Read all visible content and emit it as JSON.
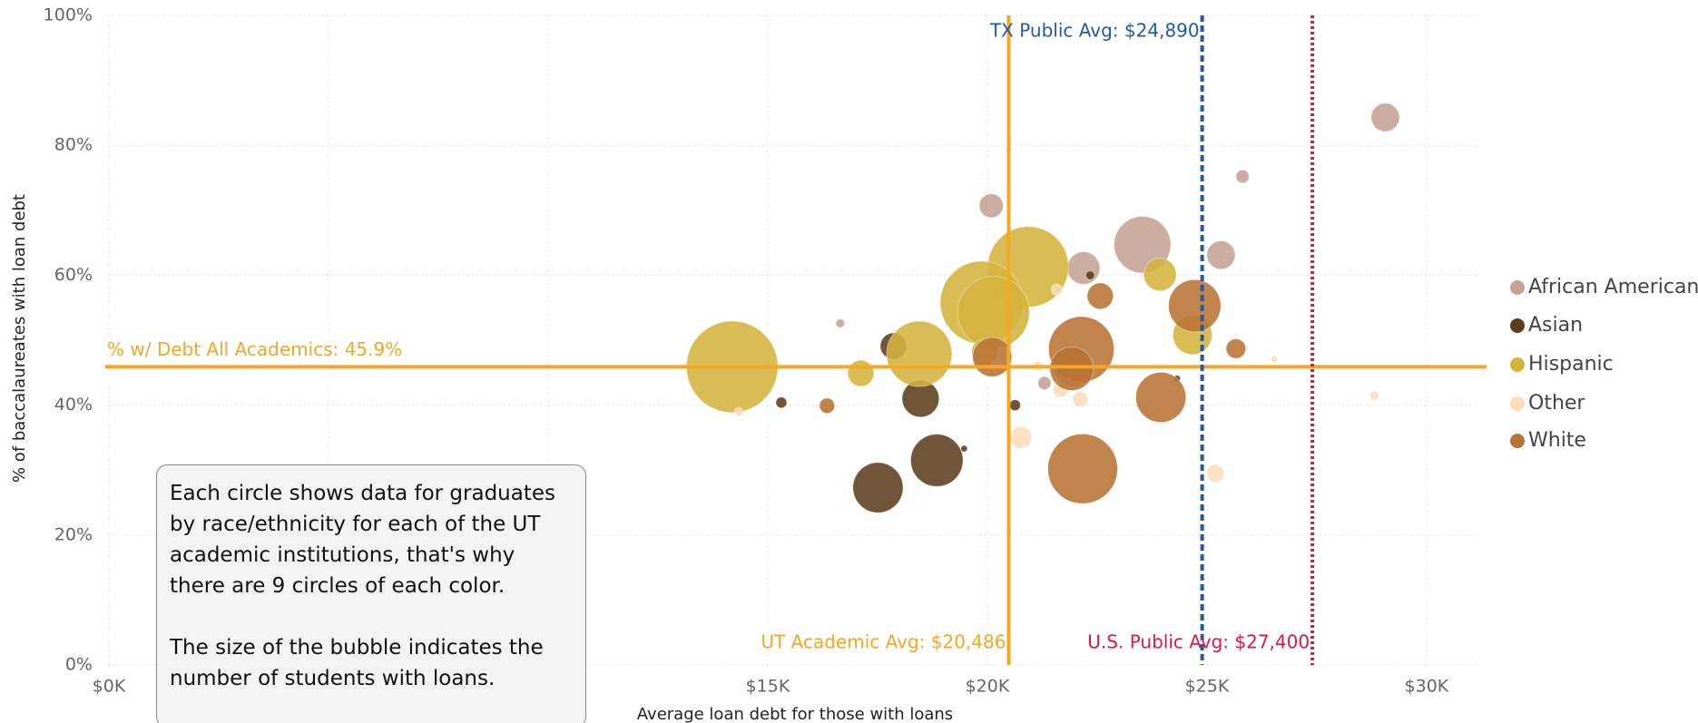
{
  "chart_data": {
    "type": "scatter",
    "x_label": "Average loan debt for those with loans",
    "y_label": "% of baccalaureates with loan debt",
    "xlim": [
      0,
      31200
    ],
    "ylim": [
      0,
      100
    ],
    "xticks": [
      {
        "value": 0,
        "label": "$0K"
      },
      {
        "value": 5000
      },
      {
        "value": 10000
      },
      {
        "value": 15000,
        "label": "$15K"
      },
      {
        "value": 20000,
        "label": "$20K"
      },
      {
        "value": 25000,
        "label": "$25K"
      },
      {
        "value": 30000,
        "label": "$30K"
      }
    ],
    "yticks": [
      {
        "value": 0,
        "label": "0%"
      },
      {
        "value": 20,
        "label": "20%"
      },
      {
        "value": 40,
        "label": "40%"
      },
      {
        "value": 60,
        "label": "60%"
      },
      {
        "value": 80,
        "label": "80%"
      },
      {
        "value": 100,
        "label": "100%"
      }
    ],
    "grid": true,
    "legend": "right",
    "series": [
      {
        "name": "African American",
        "color": "#c4a294",
        "x": [
          29060,
          25810,
          20090,
          23530,
          25320,
          22190,
          21300,
          16650,
          21950
        ],
        "values": [
          84.3,
          75.2,
          70.7,
          64.7,
          63.1,
          61.1,
          43.4,
          52.6,
          45.9
        ],
        "sizes": [
          169,
          36,
          121,
          676,
          169,
          225,
          36,
          16,
          324
        ]
      },
      {
        "name": "Asian",
        "color": "#5c3d1e",
        "x": [
          17510,
          18850,
          18480,
          17860,
          15310,
          20630,
          19470,
          22340,
          24320
        ],
        "values": [
          27.3,
          31.5,
          41.0,
          49.1,
          40.4,
          40.0,
          33.3,
          60.0,
          44.1
        ],
        "sizes": [
          529,
          576,
          289,
          144,
          25,
          25,
          9,
          16,
          9
        ]
      },
      {
        "name": "Hispanic",
        "color": "#d4b43c",
        "x": [
          14190,
          20930,
          19870,
          20140,
          18450,
          24670,
          23930,
          17120,
          19940
        ],
        "values": [
          45.9,
          61.3,
          55.8,
          54.3,
          47.9,
          50.8,
          60.1,
          44.9,
          48.2
        ],
        "sizes": [
          1764,
          1369,
          1444,
          1089,
          900,
          324,
          225,
          144,
          144
        ]
      },
      {
        "name": "Other",
        "color": "#fbdcb8",
        "x": [
          20760,
          25190,
          22120,
          21670,
          21580,
          28810,
          26530,
          14340,
          21150
        ],
        "values": [
          35.0,
          29.5,
          40.9,
          42.4,
          57.8,
          41.5,
          47.1,
          39.0,
          46.1
        ],
        "sizes": [
          100,
          64,
          49,
          49,
          25,
          16,
          9,
          16,
          16
        ]
      },
      {
        "name": "White",
        "color": "#b87333",
        "x": [
          22170,
          22140,
          23950,
          24720,
          21920,
          20110,
          22570,
          25660,
          16350
        ],
        "values": [
          30.2,
          48.6,
          41.2,
          55.3,
          45.6,
          47.4,
          56.8,
          48.7,
          39.9
        ],
        "sizes": [
          1024,
          900,
          529,
          576,
          400,
          324,
          144,
          81,
          49
        ]
      }
    ],
    "reference_lines": [
      {
        "label": "% w/ Debt All Academics: 45.9%",
        "axis": "y",
        "value": 45.9,
        "color": "#f5a623",
        "style": "solid"
      },
      {
        "label": "UT Academic Avg: $20,486",
        "axis": "x",
        "value": 20486,
        "color": "#f5a623",
        "style": "solid"
      },
      {
        "label": "TX Public Avg: $24,890",
        "axis": "x",
        "value": 24890,
        "color": "#1f5ba8",
        "style": "dashed"
      },
      {
        "label": "U.S. Public Avg: $27,400",
        "axis": "x",
        "value": 27400,
        "color": "#e0173e",
        "style": "dotted"
      }
    ],
    "note": [
      "Each circle shows data for graduates by race/ethnicity for each of the UT academic institutions, that's why there are 9 circles of each color.",
      "The size of the bubble indicates the number of students with loans."
    ]
  }
}
